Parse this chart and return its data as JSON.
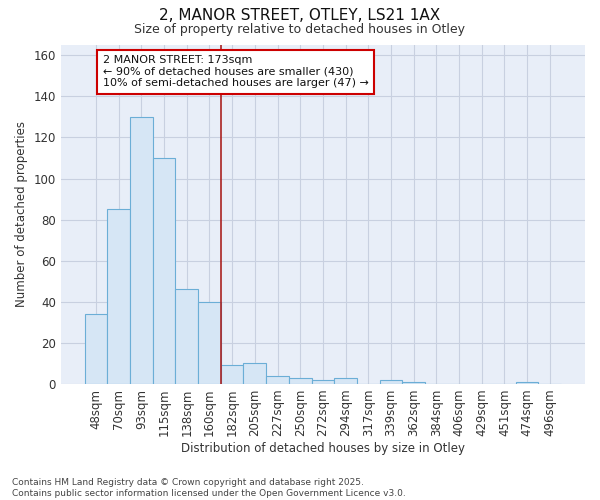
{
  "title_line1": "2, MANOR STREET, OTLEY, LS21 1AX",
  "title_line2": "Size of property relative to detached houses in Otley",
  "xlabel": "Distribution of detached houses by size in Otley",
  "ylabel": "Number of detached properties",
  "categories": [
    "48sqm",
    "70sqm",
    "93sqm",
    "115sqm",
    "138sqm",
    "160sqm",
    "182sqm",
    "205sqm",
    "227sqm",
    "250sqm",
    "272sqm",
    "294sqm",
    "317sqm",
    "339sqm",
    "362sqm",
    "384sqm",
    "406sqm",
    "429sqm",
    "451sqm",
    "474sqm",
    "496sqm"
  ],
  "values": [
    34,
    85,
    130,
    110,
    46,
    40,
    9,
    10,
    4,
    3,
    2,
    3,
    0,
    2,
    1,
    0,
    0,
    0,
    0,
    1,
    0
  ],
  "bar_color": "#d6e6f5",
  "bar_edge_color": "#6baed6",
  "background_color": "#ffffff",
  "plot_bg_color": "#e8eef8",
  "grid_color": "#c8d0e0",
  "vline_x": 6,
  "vline_color": "#aa2222",
  "annotation_text": "2 MANOR STREET: 173sqm\n← 90% of detached houses are smaller (430)\n10% of semi-detached houses are larger (47) →",
  "annotation_box_color": "white",
  "annotation_box_edge_color": "#cc0000",
  "ylim": [
    0,
    165
  ],
  "footnote": "Contains HM Land Registry data © Crown copyright and database right 2025.\nContains public sector information licensed under the Open Government Licence v3.0."
}
